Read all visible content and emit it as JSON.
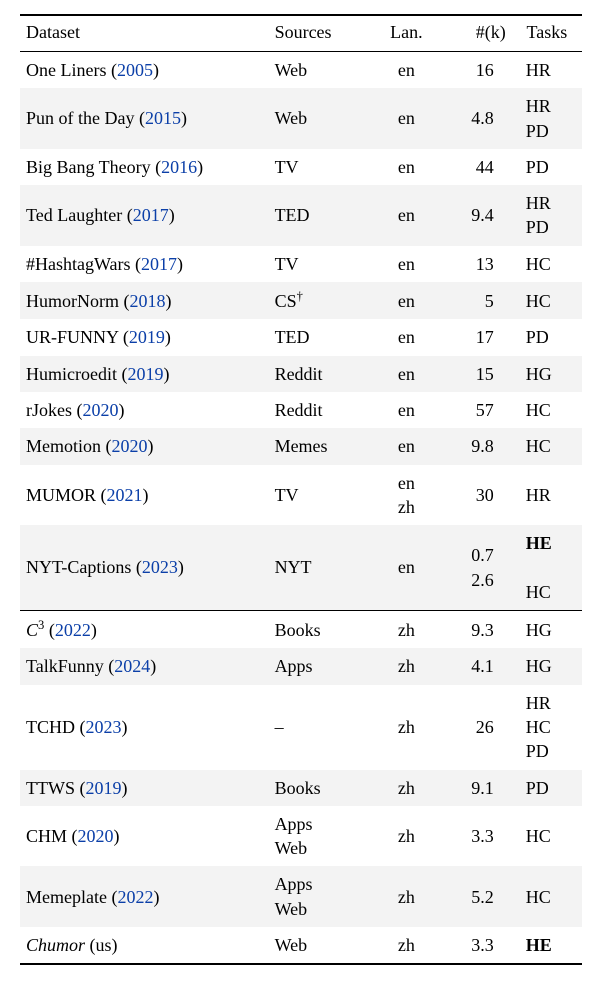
{
  "columns": {
    "dataset": "Dataset",
    "sources": "Sources",
    "lan": "Lan.",
    "num": "#(k)",
    "tasks": "Tasks"
  },
  "linkColor": "#0b3fa8",
  "altRowBg": "#f3f3f3",
  "rows": [
    {
      "name": "One Liners",
      "year": "2005",
      "sources": "Web",
      "lan": "en",
      "num": "16",
      "tasks": "HR",
      "section": 0,
      "alt": false
    },
    {
      "name": "Pun of the Day",
      "year": "2015",
      "sources": "Web",
      "lan": "en",
      "num": "4.8",
      "tasks": "HR\nPD",
      "section": 0,
      "alt": true
    },
    {
      "name": "Big Bang Theory",
      "year": "2016",
      "sources": "TV",
      "lan": "en",
      "num": "44",
      "tasks": "PD",
      "section": 0,
      "alt": false
    },
    {
      "name": "Ted Laughter",
      "year": "2017",
      "sources": "TED",
      "lan": "en",
      "num": "9.4",
      "tasks": "HR\nPD",
      "section": 0,
      "alt": true
    },
    {
      "name": "#HashtagWars",
      "year": "2017",
      "sources": "TV",
      "lan": "en",
      "num": "13",
      "tasks": "HC",
      "section": 0,
      "alt": false
    },
    {
      "name": "HumorNorm",
      "year": "2018",
      "sourcesHtml": "CS<sup>†</sup>",
      "lan": "en",
      "num": "5",
      "tasks": "HC",
      "section": 0,
      "alt": true
    },
    {
      "name": "UR-FUNNY",
      "year": "2019",
      "sources": "TED",
      "lan": "en",
      "num": "17",
      "tasks": "PD",
      "section": 0,
      "alt": false
    },
    {
      "name": "Humicroedit",
      "year": "2019",
      "sources": "Reddit",
      "lan": "en",
      "num": "15",
      "tasks": "HG",
      "section": 0,
      "alt": true
    },
    {
      "name": "rJokes",
      "year": "2020",
      "sources": "Reddit",
      "lan": "en",
      "num": "57",
      "tasks": "HC",
      "section": 0,
      "alt": false
    },
    {
      "name": "Memotion",
      "year": "2020",
      "sources": "Memes",
      "lan": "en",
      "num": "9.8",
      "tasks": "HC",
      "section": 0,
      "alt": true
    },
    {
      "name": "MUMOR",
      "year": "2021",
      "sources": "TV",
      "lan": "en\nzh",
      "num": "30",
      "tasks": "HR",
      "section": 0,
      "alt": false
    },
    {
      "name": "NYT-Captions",
      "year": "2023",
      "sources": "NYT",
      "lan": "en",
      "num": "0.7\n2.6",
      "tasksHtml": "<span class=\"bold\">HE</span><br>HC",
      "section": 0,
      "alt": true
    },
    {
      "nameHtml": "<span class=\"ital\">C</span><sup>3</sup>",
      "year": "2022",
      "sources": "Books",
      "lan": "zh",
      "num": "9.3",
      "tasks": "HG",
      "section": 1,
      "alt": false
    },
    {
      "name": "TalkFunny",
      "year": "2024",
      "sources": "Apps",
      "lan": "zh",
      "num": "4.1",
      "tasks": "HG",
      "section": 1,
      "alt": true
    },
    {
      "name": "TCHD",
      "year": "2023",
      "sources": "–",
      "lan": "zh",
      "num": "26",
      "tasks": "HR\nHC\nPD",
      "section": 1,
      "alt": false
    },
    {
      "name": "TTWS",
      "year": "2019",
      "sources": "Books",
      "lan": "zh",
      "num": "9.1",
      "tasks": "PD",
      "section": 1,
      "alt": true
    },
    {
      "name": "CHM",
      "year": "2020",
      "sources": "Apps\nWeb",
      "lan": "zh",
      "num": "3.3",
      "tasks": "HC",
      "section": 1,
      "alt": false
    },
    {
      "name": "Memeplate",
      "year": "2022",
      "sources": "Apps\nWeb",
      "lan": "zh",
      "num": "5.2",
      "tasks": "HC",
      "section": 1,
      "alt": true
    },
    {
      "nameHtml": "<span class=\"ital\">Chumor</span> (us)",
      "year": "",
      "sources": "Web",
      "lan": "zh",
      "num": "3.3",
      "tasksHtml": "<span class=\"bold\">HE</span>",
      "section": 1,
      "alt": false
    }
  ]
}
